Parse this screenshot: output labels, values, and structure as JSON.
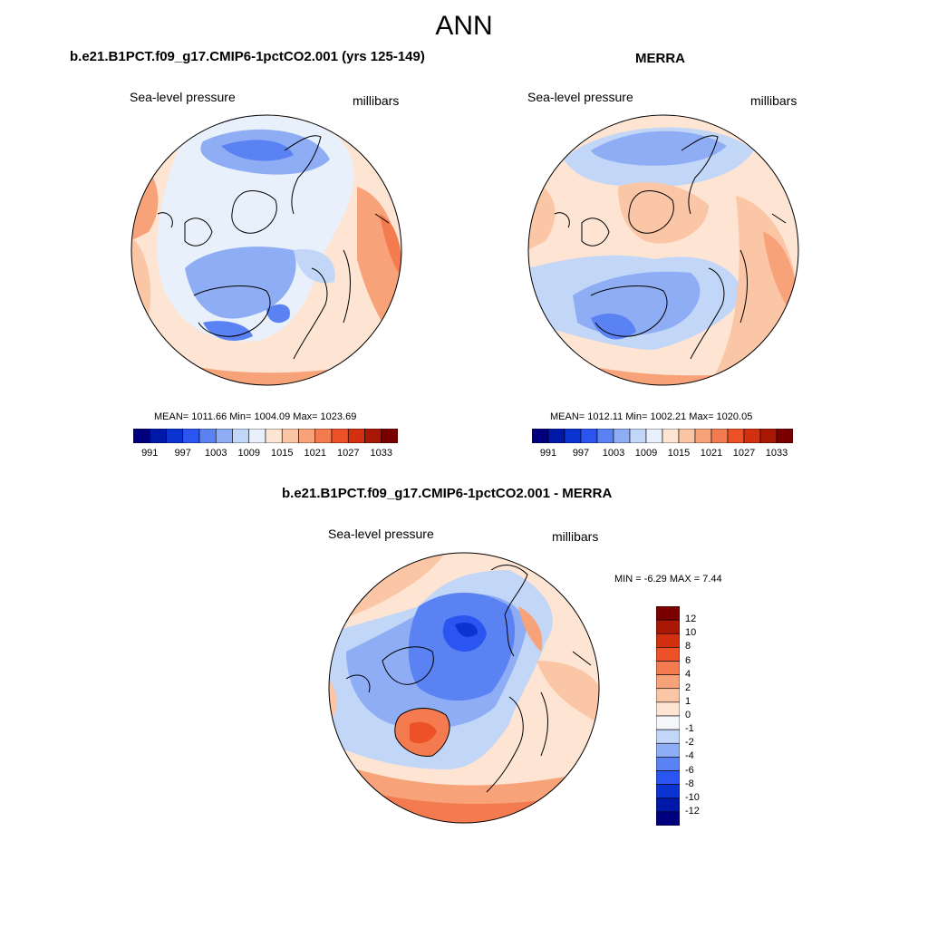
{
  "page": {
    "title": "ANN"
  },
  "panels": [
    {
      "title": "b.e21.B1PCT.f09_g17.CMIP6-1pctCO2.001 (yrs 125-149)",
      "left_label": "Sea-level pressure",
      "right_label": "millibars",
      "stats": "MEAN= 1011.66  Min= 1004.09  Max= 1023.69"
    },
    {
      "title": "MERRA",
      "left_label": "Sea-level pressure",
      "right_label": "millibars",
      "stats": "MEAN= 1012.11  Min= 1002.21  Max= 1020.05"
    },
    {
      "title": "b.e21.B1PCT.f09_g17.CMIP6-1pctCO2.001 - MERRA",
      "left_label": "Sea-level pressure",
      "right_label": "millibars",
      "stats": "MIN =  -6.29 MAX =   7.44"
    }
  ],
  "colorbars": {
    "abs": {
      "colors": [
        "#00007f",
        "#0018a8",
        "#0a33d1",
        "#2a55f0",
        "#5a82f2",
        "#8fadf4",
        "#c2d6f8",
        "#e8f0fb",
        "#fde4d3",
        "#fbc6a6",
        "#f8a27a",
        "#f47a50",
        "#ec5128",
        "#d2300e",
        "#a91805",
        "#7a0000"
      ],
      "tick_labels": [
        "991",
        "997",
        "1003",
        "1009",
        "1015",
        "1021",
        "1027",
        "1033"
      ]
    },
    "diff": {
      "colors_top_to_bottom": [
        "#7a0000",
        "#a91805",
        "#d2300e",
        "#ec5128",
        "#f47a50",
        "#f8a27a",
        "#fbc6a6",
        "#fde4d3",
        "#f4f6fa",
        "#c2d6f8",
        "#8fadf4",
        "#5a82f2",
        "#2a55f0",
        "#0a33d1",
        "#0018a8",
        "#00007f"
      ],
      "tick_labels": [
        "12",
        "10",
        "8",
        "6",
        "4",
        "2",
        "1",
        "0",
        "-1",
        "-2",
        "-4",
        "-6",
        "-8",
        "-10",
        "-12"
      ]
    }
  }
}
